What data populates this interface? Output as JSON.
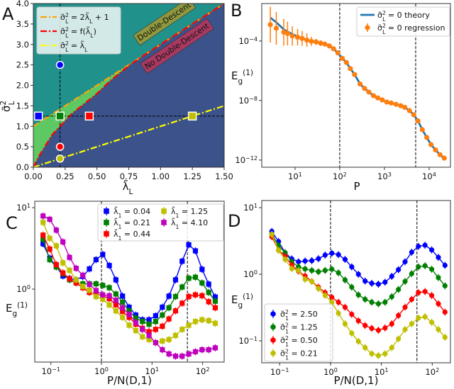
{
  "chart_data": [
    {
      "panel_label": "A",
      "type": "scatter",
      "xscale": "linear",
      "yscale": "linear",
      "xlim": [
        0,
        1.5
      ],
      "ylim": [
        0,
        4
      ],
      "xlabel": "λ̃{_L}",
      "ylabel": "σ̃{^2}{_L}",
      "xticks": [
        0,
        0.25,
        0.5,
        0.75,
        1.0,
        1.25,
        1.5
      ],
      "xtick_labels": [
        "0.00",
        "0.25",
        "0.50",
        "0.75",
        "1.00",
        "1.25",
        "1.50"
      ],
      "yticks": [
        0,
        0.5,
        1,
        1.5,
        2,
        2.5,
        3,
        3.5,
        4
      ],
      "ytick_labels": [
        "0.0",
        "0.5",
        "1.0",
        "1.5",
        "2.0",
        "2.5",
        "3.0",
        "3.5",
        "4.0"
      ],
      "grid": false,
      "legend": "upper left",
      "region_colors": {
        "above_orange": "#21918c",
        "between": "#5ec962",
        "below_red": "#3b528b"
      },
      "curves": [
        {
          "name": "σ̃{^2}{_L} = 2λ̃{_L} + 1",
          "color": "#ffa500",
          "x": [
            0,
            1.5
          ],
          "y": [
            1,
            4
          ]
        },
        {
          "name": "σ̃{^2}{_L} = f(λ̃{_L})",
          "color": "#ff0000",
          "x": [
            0,
            0.05,
            0.1,
            0.15,
            0.21,
            0.3,
            0.4,
            0.5,
            0.6,
            0.75,
            0.9,
            1.0,
            1.5
          ],
          "y": [
            0,
            0.3,
            0.55,
            0.8,
            1.0,
            1.3,
            1.55,
            1.8,
            2.1,
            2.48,
            2.8,
            3.0,
            4.0
          ]
        },
        {
          "name": "σ̃{^2}{_L} = λ̃{_L}",
          "color": "#ffff00",
          "x": [
            0,
            1.5
          ],
          "y": [
            0,
            1.5
          ]
        }
      ],
      "reference_lines": {
        "x": 0.21,
        "y": 1.25
      },
      "points": [
        {
          "shape": "circle",
          "x": 0.21,
          "y": 2.5,
          "color": "#0000ff"
        },
        {
          "shape": "circle",
          "x": 0.21,
          "y": 1.25,
          "color": "#008000"
        },
        {
          "shape": "circle",
          "x": 0.21,
          "y": 0.5,
          "color": "#ff0000"
        },
        {
          "shape": "circle",
          "x": 0.21,
          "y": 0.21,
          "color": "#bfbf00"
        },
        {
          "shape": "square",
          "x": 0.04,
          "y": 1.25,
          "color": "#0000ff"
        },
        {
          "shape": "square",
          "x": 0.21,
          "y": 1.25,
          "color": "#008000"
        },
        {
          "shape": "square",
          "x": 0.44,
          "y": 1.25,
          "color": "#ff0000"
        },
        {
          "shape": "square",
          "x": 1.25,
          "y": 1.25,
          "color": "#bfbf00"
        }
      ],
      "annotations": [
        {
          "text": "Double-Descent",
          "x": 1.03,
          "y": 3.55,
          "bg": "#8f983e"
        },
        {
          "text": "No Double-Descent",
          "x": 1.13,
          "y": 2.95,
          "bg": "#a83a62"
        }
      ]
    },
    {
      "panel_label": "B",
      "type": "line+errorbar",
      "xscale": "log",
      "yscale": "log",
      "xlim": [
        1.8,
        30000
      ],
      "ylim": [
        3.3e-13,
        0.033
      ],
      "xlabel": "P",
      "ylabel": "E{_g}{^(1)}",
      "xticks": [
        10,
        100,
        1000,
        10000
      ],
      "xtick_labels": [
        "10{^1}",
        "10{^2}",
        "10{^3}",
        "10{^4}"
      ],
      "yticks": [
        1e-12,
        1e-08,
        0.0001
      ],
      "ytick_labels": [
        "10{^−12}",
        "10{^−8}",
        "10{^−4}"
      ],
      "vlines": [
        100,
        5000
      ],
      "legend": "upper right",
      "series": [
        {
          "name": "σ̃{^2}{_L} = 0 theory",
          "type": "line",
          "color": "#1f77b4",
          "x": [
            2.8,
            3.8,
            5.6,
            6.8,
            8.7,
            11.4,
            14.4,
            18.4,
            23.2,
            29.6,
            37.3,
            46.4,
            58.5,
            72.8,
            90.8,
            114,
            141,
            173,
            215,
            285,
            360,
            448,
            571,
            711,
            896,
            1130,
            1422,
            1816,
            2317,
            2851,
            3637,
            4529,
            5636,
            7031,
            8851,
            11015,
            13900,
            17500,
            21800
          ],
          "y": [
            0.0037,
            0.0018,
            0.0006,
            0.00043,
            0.00029,
            0.0002,
            0.00015,
            0.000115,
            9.5e-05,
            8.7e-05,
            7.2e-05,
            6.2e-05,
            4.7e-05,
            3e-05,
            1.6e-05,
            6.9e-06,
            3.6e-06,
            1.4e-06,
            5.6e-07,
            1.3e-07,
            6.5e-08,
            3.7e-08,
            2.1e-08,
            1.5e-08,
            1.1e-08,
            7.9e-09,
            6.8e-09,
            5.6e-09,
            4.5e-09,
            3.5e-09,
            2.1e-09,
            1.1e-09,
            4.3e-10,
            1.1e-10,
            3.3e-11,
            1.1e-11,
            4.8e-12,
            2.3e-12,
            1.35e-12
          ]
        },
        {
          "name": "σ̃{^2}{_L} = 0 regression",
          "type": "errorbar",
          "color": "#ff7f0e",
          "x": [
            2.8,
            3.8,
            5.6,
            6.8,
            8.7,
            11.4,
            14.4,
            18.4,
            23.2,
            29.6,
            37.3,
            46.4,
            58.5,
            72.8,
            90.8,
            114,
            141,
            173,
            215,
            285,
            360,
            448,
            571,
            711,
            896,
            1130,
            1422,
            1816,
            2317,
            2851,
            3637,
            4529,
            5636,
            7031,
            8851,
            11015,
            13900,
            17500,
            21800
          ],
          "y": [
            0.00126,
            0.00072,
            0.00039,
            0.00032,
            0.00022,
            0.00018,
            0.00015,
            0.000115,
            9.5e-05,
            8.7e-05,
            7.2e-05,
            6.2e-05,
            4.7e-05,
            3e-05,
            1.6e-05,
            6.9e-06,
            3.6e-06,
            1.4e-06,
            5.6e-07,
            1.3e-07,
            6.5e-08,
            3.7e-08,
            2.1e-08,
            1.5e-08,
            1.1e-08,
            7.9e-09,
            6.8e-09,
            5.6e-09,
            4.5e-09,
            3.5e-09,
            2.1e-09,
            1.1e-09,
            4.3e-10,
            1.1e-10,
            3.3e-11,
            1.1e-11,
            4.8e-12,
            2.3e-12,
            1.35e-12
          ],
          "yerr_log10": [
            1.2,
            1.1,
            0.9,
            0.8,
            0.65,
            0.55,
            0.5,
            0.45,
            0.3,
            0.2,
            0.2,
            0.15,
            0.15,
            0.15,
            0.15,
            0.15,
            0.15,
            0.15,
            0.1,
            0.05,
            0.05,
            0.05,
            0.05,
            0.05,
            0.05,
            0.05,
            0.05,
            0.05,
            0.05,
            0.05,
            0.05,
            0.05,
            0.05,
            0.05,
            0.05,
            0.05,
            0.05,
            0.05,
            0.05
          ]
        }
      ]
    },
    {
      "panel_label": "C",
      "type": "line+errorbar",
      "xscale": "log",
      "yscale": "log",
      "xlim": [
        0.048,
        267
      ],
      "ylim": [
        0.127,
        12.0
      ],
      "xlabel": "P/N(D,1)",
      "ylabel": "E{_g}{^(1)}",
      "xticks": [
        0.1,
        1,
        10,
        100
      ],
      "xtick_labels": [
        "10{^−1}",
        "10{^0}",
        "10{^1}",
        "10{^2}"
      ],
      "yticks": [
        1,
        10
      ],
      "ytick_labels": [
        "10{^0}",
        "10{^1}"
      ],
      "vlines": [
        1,
        50
      ],
      "legend": "upper right",
      "marker": "square",
      "x": [
        0.07,
        0.095,
        0.128,
        0.173,
        0.234,
        0.316,
        0.428,
        0.578,
        0.782,
        1.06,
        1.43,
        1.93,
        2.61,
        3.53,
        4.78,
        6.46,
        8.73,
        11.8,
        16.0,
        21.6,
        29.2,
        39.4,
        53.3,
        72.1,
        97.5,
        132,
        178
      ],
      "series": [
        {
          "name": "λ̃{_1} = 0.04",
          "color": "#0000ff",
          "y": [
            3.6,
            2.4,
            1.9,
            1.45,
            1.35,
            1.3,
            1.43,
            1.77,
            2.3,
            2.67,
            1.95,
            1.3,
            0.82,
            0.6,
            0.48,
            0.42,
            0.42,
            0.47,
            0.6,
            0.82,
            1.3,
            2.2,
            3.5,
            2.95,
            1.75,
            1.15,
            0.8
          ]
        },
        {
          "name": "λ̃{_1} = 0.21",
          "color": "#008000",
          "y": [
            4.1,
            2.3,
            1.87,
            1.55,
            1.3,
            1.19,
            1.16,
            1.16,
            1.16,
            1.11,
            1.04,
            0.87,
            0.69,
            0.54,
            0.44,
            0.4,
            0.37,
            0.4,
            0.48,
            0.59,
            0.81,
            1.06,
            1.36,
            1.4,
            1.19,
            0.91,
            0.71
          ]
        },
        {
          "name": "λ̃{_1} = 0.44",
          "color": "#ff0000",
          "y": [
            4.6,
            3.1,
            2.0,
            1.58,
            1.34,
            1.19,
            1.04,
            0.91,
            0.87,
            0.83,
            0.76,
            0.64,
            0.53,
            0.45,
            0.37,
            0.33,
            0.3,
            0.32,
            0.35,
            0.43,
            0.54,
            0.67,
            0.81,
            0.85,
            0.83,
            0.7,
            0.59
          ]
        },
        {
          "name": "λ̃{_1} = 1.25",
          "color": "#bfbf00",
          "y": [
            6.6,
            4.2,
            3.4,
            2.1,
            1.7,
            1.3,
            1.08,
            0.97,
            0.81,
            0.75,
            0.64,
            0.54,
            0.45,
            0.36,
            0.31,
            0.26,
            0.24,
            0.22,
            0.23,
            0.24,
            0.27,
            0.32,
            0.36,
            0.4,
            0.42,
            0.41,
            0.38
          ]
        },
        {
          "name": "λ̃{_1} = 4.10",
          "color": "#bf00bf",
          "y": [
            7.9,
            7.2,
            5.3,
            3.8,
            2.45,
            1.8,
            1.48,
            1.14,
            0.96,
            0.85,
            0.83,
            0.73,
            0.59,
            0.49,
            0.39,
            0.32,
            0.27,
            0.22,
            0.18,
            0.16,
            0.15,
            0.15,
            0.16,
            0.17,
            0.18,
            0.18,
            0.19
          ]
        }
      ]
    },
    {
      "panel_label": "D",
      "type": "line+errorbar",
      "xscale": "log",
      "yscale": "log",
      "xlim": [
        0.0444,
        228
      ],
      "ylim": [
        0.0468,
        12.8
      ],
      "xlabel": "P/N(D,1)",
      "ylabel": "E{_g}{^(1)}",
      "xticks": [
        0.1,
        1,
        10,
        100
      ],
      "xtick_labels": [
        "10{^−1}",
        "10{^0}",
        "10{^1}",
        "10{^2}"
      ],
      "yticks": [
        0.1,
        1,
        10
      ],
      "ytick_labels": [
        "10{^−1}",
        "10{^0}",
        "10{^1}"
      ],
      "vlines": [
        1,
        50
      ],
      "legend": "lower left",
      "marker": "circle",
      "x": [
        0.07,
        0.095,
        0.128,
        0.173,
        0.234,
        0.316,
        0.428,
        0.578,
        0.782,
        1.06,
        1.43,
        1.93,
        2.61,
        3.53,
        4.78,
        6.46,
        8.73,
        11.8,
        16.0,
        21.6,
        29.2,
        39.4,
        53.3,
        72.1,
        97.5,
        132,
        178
      ],
      "series": [
        {
          "name": "σ̃{^2}{_1} = 2.50",
          "color": "#0000ff",
          "y": [
            4.4,
            3.1,
            2.1,
            1.7,
            1.54,
            1.58,
            1.6,
            1.71,
            1.94,
            2.07,
            1.97,
            1.67,
            1.29,
            1.0,
            0.79,
            0.73,
            0.71,
            0.76,
            0.93,
            1.17,
            1.54,
            2.14,
            2.62,
            2.73,
            2.32,
            1.79,
            1.36
          ]
        },
        {
          "name": "σ̃{^2}{_1} = 1.25",
          "color": "#008000",
          "y": [
            4.0,
            2.7,
            2.1,
            1.54,
            1.29,
            1.2,
            1.14,
            1.09,
            1.14,
            1.19,
            1.05,
            0.82,
            0.64,
            0.49,
            0.42,
            0.38,
            0.36,
            0.38,
            0.46,
            0.59,
            0.78,
            1.02,
            1.29,
            1.34,
            1.19,
            0.89,
            0.67
          ]
        },
        {
          "name": "σ̃{^2}{_1} = 0.50",
          "color": "#ff0000",
          "y": [
            3.66,
            2.3,
            1.86,
            1.37,
            1.11,
            0.94,
            0.78,
            0.64,
            0.53,
            0.45,
            0.38,
            0.32,
            0.25,
            0.2,
            0.17,
            0.154,
            0.144,
            0.156,
            0.18,
            0.24,
            0.32,
            0.42,
            0.53,
            0.55,
            0.48,
            0.36,
            0.27
          ]
        },
        {
          "name": "σ̃{^2}{_1} = 0.21",
          "color": "#bfbf00",
          "y": [
            3.97,
            2.28,
            1.67,
            1.21,
            1.14,
            0.84,
            0.78,
            0.61,
            0.48,
            0.38,
            0.26,
            0.18,
            0.13,
            0.098,
            0.079,
            0.064,
            0.06,
            0.064,
            0.079,
            0.107,
            0.148,
            0.18,
            0.22,
            0.23,
            0.19,
            0.148,
            0.113
          ]
        }
      ]
    }
  ]
}
